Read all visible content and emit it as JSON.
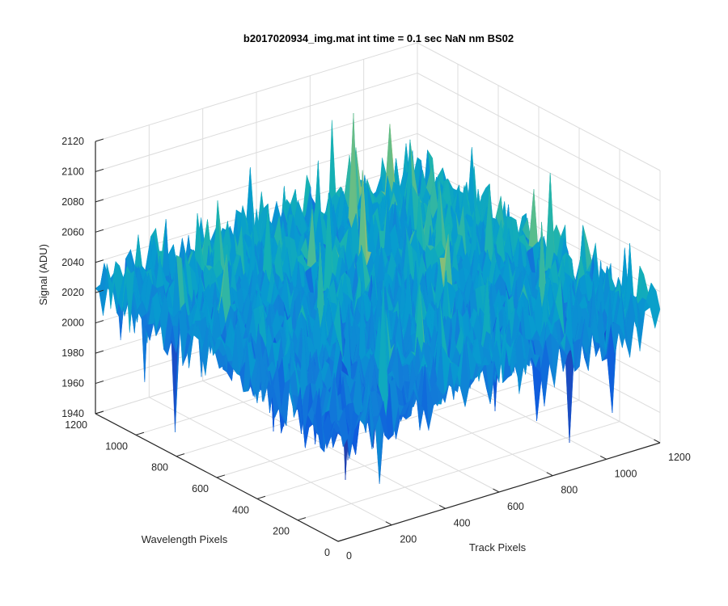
{
  "chart_data": {
    "type": "surface",
    "title": "b2017020934_img.mat int time = 0.1 sec  NaN nm BS02",
    "xlabel": "Track Pixels",
    "ylabel": "Wavelength Pixels",
    "zlabel": "Signal (ADU)",
    "xlim": [
      0,
      1200
    ],
    "ylim": [
      0,
      1200
    ],
    "zlim": [
      1940,
      2120
    ],
    "xticks": [
      "0",
      "200",
      "400",
      "600",
      "800",
      "1000",
      "1200"
    ],
    "yticks": [
      "0",
      "200",
      "400",
      "600",
      "800",
      "1000",
      "1200"
    ],
    "zticks": [
      "1940",
      "1960",
      "1980",
      "2000",
      "2020",
      "2040",
      "2060",
      "2080",
      "2100",
      "2120"
    ],
    "grid": true,
    "colormap": "parula",
    "z_mean_approx": 2025,
    "z_range_approx": [
      1950,
      2110
    ]
  }
}
